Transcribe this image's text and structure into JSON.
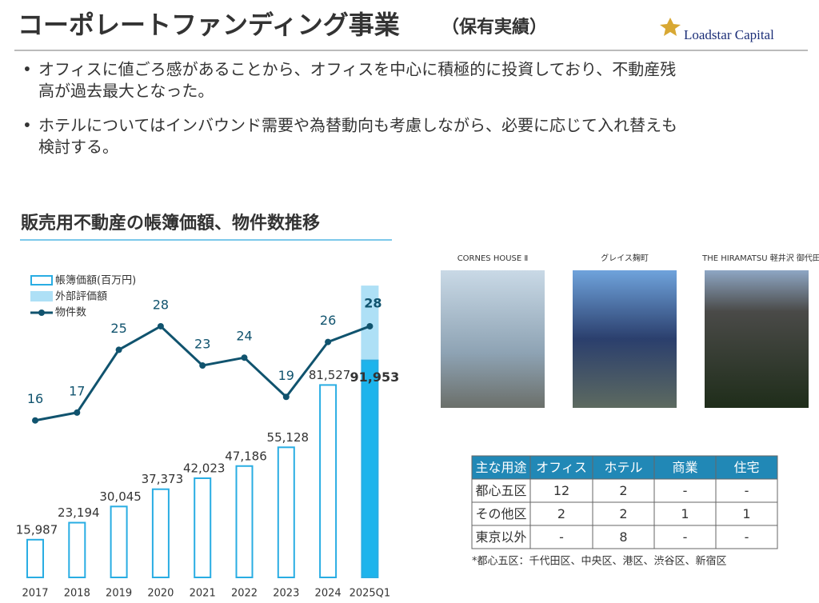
{
  "header": {
    "title": "コーポレートファンディング事業",
    "subtitle": "（保有実績）",
    "logo": "Loadstar Capital"
  },
  "bullets": [
    [
      "オフィスに値ごろ感があることから、オフィスを中心に積極的に投資しており、不動産残",
      "高が過去最大となった。"
    ],
    [
      "ホテルについてはインバウンド需要や為替動向も考慮しながら、必要に応じて入れ替えも",
      "検討する。"
    ]
  ],
  "section_title": "販売用不動産の帳簿価額、物件数推移",
  "chart_data": {
    "type": "bar-line",
    "categories": [
      "2017",
      "2018",
      "2019",
      "2020",
      "2021",
      "2022",
      "2023",
      "2024",
      "2025Q1"
    ],
    "series": [
      {
        "name": "帳簿価額(百万円)",
        "color": "#29ade3",
        "fill_colors": [
          "none",
          "none",
          "none",
          "none",
          "none",
          "none",
          "none",
          "none",
          "#1db4ec"
        ],
        "values": [
          15987,
          23194,
          30045,
          37373,
          42023,
          47186,
          55128,
          81527,
          91953
        ],
        "value_labels": [
          "15,987",
          "23,194",
          "30,045",
          "37,373",
          "42,023",
          "47,186",
          "55,128",
          "81,527",
          "91,953"
        ]
      },
      {
        "name": "外部評価額",
        "color": "#aee0f6",
        "stacked": true,
        "values": [
          null,
          null,
          null,
          null,
          null,
          null,
          null,
          null,
          31700
        ]
      },
      {
        "name": "物件数",
        "color": "#10536e",
        "axis": "y2",
        "values": [
          16,
          17,
          25,
          28,
          23,
          24,
          19,
          26,
          28
        ]
      }
    ],
    "ylim": [
      0,
      143000
    ],
    "y2lim": [
      -4,
      39
    ]
  },
  "photos": [
    {
      "caption": "CORNES HOUSE Ⅱ"
    },
    {
      "caption": "グレイス麹町"
    },
    {
      "caption": "THE HIRAMATSU 軽井沢 御代田"
    }
  ],
  "table": {
    "header": [
      "主な用途",
      "オフィス",
      "ホテル",
      "商業",
      "住宅"
    ],
    "rows": [
      [
        "都心五区",
        "12",
        "2",
        "-",
        "-"
      ],
      [
        "その他区",
        "2",
        "2",
        "1",
        "1"
      ],
      [
        "東京以外",
        "-",
        "8",
        "-",
        "-"
      ]
    ]
  },
  "footnote": "*都心五区：千代田区、中央区、港区、渋谷区、新宿区"
}
